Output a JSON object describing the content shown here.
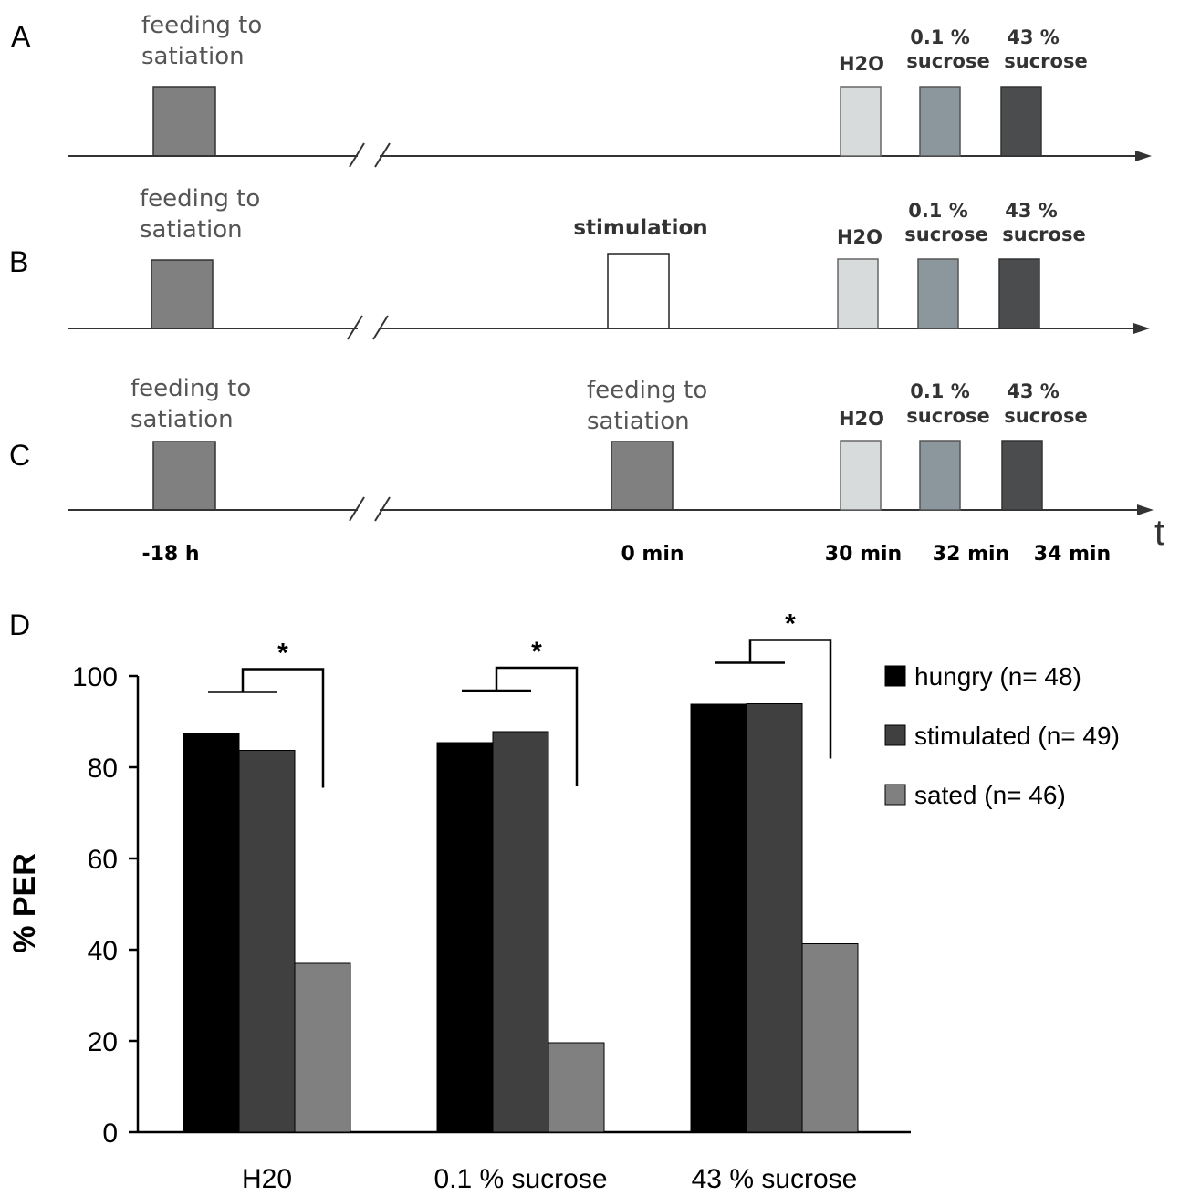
{
  "panels": {
    "A": {
      "label": "A",
      "feeding_label": [
        "feeding to",
        "satiation"
      ],
      "probes": [
        {
          "label": [
            "H2O"
          ],
          "color": "#d8dbdb"
        },
        {
          "label": [
            "0.1 %",
            "sucrose"
          ],
          "color": "#8b969d"
        },
        {
          "label": [
            "43 %",
            "sucrose"
          ],
          "color": "#4b4c4e"
        }
      ]
    },
    "B": {
      "label": "B",
      "feeding_label": [
        "feeding to",
        "satiation"
      ],
      "treatment_label": [
        "stimulation"
      ],
      "probes": [
        {
          "label": [
            "H2O"
          ],
          "color": "#d8dbdb"
        },
        {
          "label": [
            "0.1 %",
            "sucrose"
          ],
          "color": "#8b969d"
        },
        {
          "label": [
            "43 %",
            "sucrose"
          ],
          "color": "#4b4c4e"
        }
      ]
    },
    "C": {
      "label": "C",
      "feeding_label": [
        "feeding to",
        "satiation"
      ],
      "treatment_label": [
        "feeding to",
        "satiation"
      ],
      "probes": [
        {
          "label": [
            "H2O"
          ],
          "color": "#d8dbdb"
        },
        {
          "label": [
            "0.1 %",
            "sucrose"
          ],
          "color": "#8b969d"
        },
        {
          "label": [
            "43 %",
            "sucrose"
          ],
          "color": "#4b4c4e"
        }
      ]
    }
  },
  "timeline": {
    "axis_letter": "t",
    "times": [
      "-18 h",
      "0 min",
      "30 min",
      "32 min",
      "34 min"
    ],
    "feed_color": "#808080"
  },
  "chart_data": {
    "panel_label": "D",
    "type": "bar",
    "title": "",
    "xlabel": "",
    "ylabel": "% PER",
    "ylim": [
      0,
      100
    ],
    "yticks": [
      0,
      20,
      40,
      60,
      80,
      100
    ],
    "categories": [
      "H20",
      "0.1 % sucrose",
      "43 % sucrose"
    ],
    "series": [
      {
        "name": "hungry (n= 48)",
        "color": "#000000",
        "values": [
          87.5,
          85.4,
          93.8
        ]
      },
      {
        "name": "stimulated (n= 49)",
        "color": "#404040",
        "values": [
          83.7,
          87.8,
          93.9
        ]
      },
      {
        "name": "sated (n= 46)",
        "color": "#808080",
        "values": [
          37.0,
          19.6,
          41.3
        ]
      }
    ],
    "significance": [
      "*",
      "*",
      "*"
    ],
    "legend_position": "right"
  }
}
